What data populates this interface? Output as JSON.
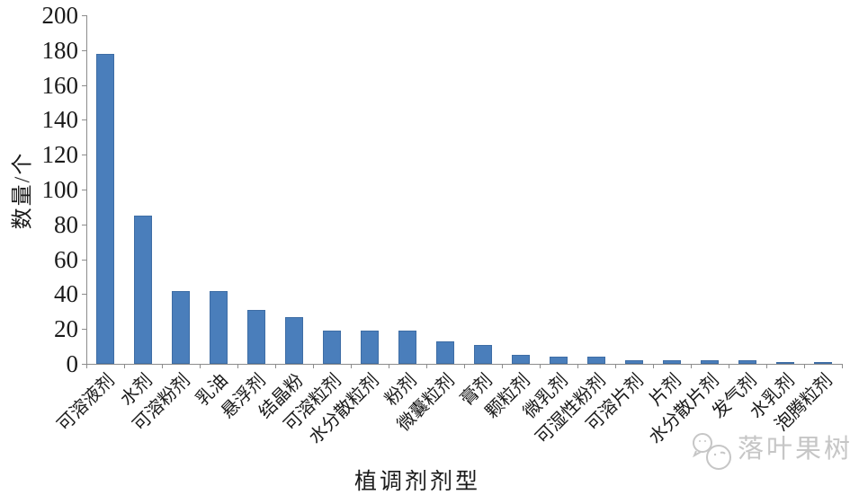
{
  "chart_data": {
    "type": "bar",
    "title": "",
    "xlabel": "植调剂剂型",
    "ylabel": "数量/个",
    "categories": [
      "可溶液剂",
      "水剂",
      "可溶粉剂",
      "乳油",
      "悬浮剂",
      "结晶粉",
      "可溶粒剂",
      "水分散粒剂",
      "粉剂",
      "微囊粒剂",
      "膏剂",
      "颗粒剂",
      "微乳剂",
      "可湿性粉剂",
      "可溶片剂",
      "片剂",
      "水分散片剂",
      "发气剂",
      "水乳剂",
      "泡腾粒剂"
    ],
    "values": [
      178,
      85,
      42,
      42,
      31,
      27,
      19,
      19,
      19,
      13,
      11,
      5,
      4,
      4,
      2,
      2,
      2,
      2,
      1,
      1
    ],
    "ylim": [
      0,
      200
    ],
    "yticks": [
      0,
      20,
      40,
      60,
      80,
      100,
      120,
      140,
      160,
      180,
      200
    ],
    "grid": false,
    "legend": "none",
    "bar_color": "#4A7EBB",
    "bar_border_color": "#3E6DA5",
    "axis_color": "#8C8C8C",
    "text_color": "#1A1A1A"
  },
  "watermark": {
    "text": "落叶果树",
    "logo": "sketch-bubbles-logo",
    "color": "#C6C6C6"
  }
}
